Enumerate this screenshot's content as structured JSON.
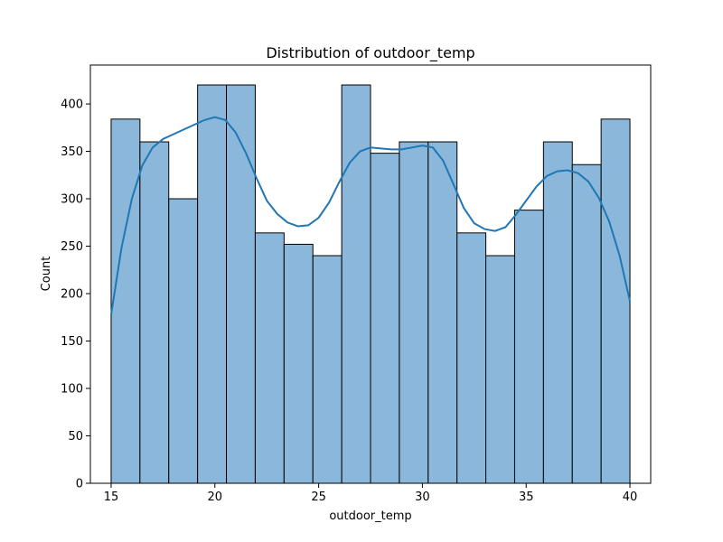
{
  "chart_data": {
    "type": "bar",
    "title": "Distribution of outdoor_temp",
    "xlabel": "outdoor_temp",
    "ylabel": "Count",
    "xlim": [
      14.0,
      41.0
    ],
    "ylim": [
      0,
      441
    ],
    "bin_edges": [
      15.0,
      16.3889,
      17.7778,
      19.1667,
      20.5556,
      21.9444,
      23.3333,
      24.7222,
      26.1111,
      27.5,
      28.8889,
      30.2778,
      31.6667,
      33.0556,
      34.4444,
      35.8333,
      37.2222,
      38.6111,
      40.0
    ],
    "values": [
      384,
      360,
      300,
      420,
      420,
      264,
      252,
      240,
      420,
      348,
      360,
      360,
      264,
      240,
      288,
      360,
      336,
      384
    ],
    "x_ticks": [
      15,
      20,
      25,
      30,
      35,
      40
    ],
    "y_ticks": [
      0,
      50,
      100,
      150,
      200,
      250,
      300,
      350,
      400
    ],
    "kde": {
      "x": [
        15.0,
        15.5,
        16.0,
        16.5,
        17.0,
        17.5,
        18.0,
        18.5,
        19.0,
        19.5,
        20.0,
        20.5,
        21.0,
        21.5,
        22.0,
        22.5,
        23.0,
        23.5,
        24.0,
        24.5,
        25.0,
        25.5,
        26.0,
        26.5,
        27.0,
        27.5,
        28.0,
        28.5,
        29.0,
        29.5,
        30.0,
        30.5,
        31.0,
        31.5,
        32.0,
        32.5,
        33.0,
        33.5,
        34.0,
        34.5,
        35.0,
        35.5,
        36.0,
        36.5,
        37.0,
        37.5,
        38.0,
        38.5,
        39.0,
        39.5,
        40.0
      ],
      "y": [
        178,
        248,
        300,
        335,
        354,
        363,
        368,
        373,
        378,
        383,
        386,
        383,
        370,
        348,
        322,
        298,
        284,
        275,
        271,
        272,
        280,
        296,
        318,
        338,
        350,
        354,
        353,
        352,
        352,
        354,
        356,
        354,
        340,
        315,
        290,
        274,
        268,
        266,
        270,
        283,
        298,
        313,
        324,
        329,
        330,
        327,
        318,
        301,
        276,
        240,
        192
      ]
    },
    "colors": {
      "bar_fill": "#8bb8da",
      "bar_edge": "#000000",
      "kde_line": "#1f77b4"
    },
    "grid": false,
    "legend": "none"
  }
}
